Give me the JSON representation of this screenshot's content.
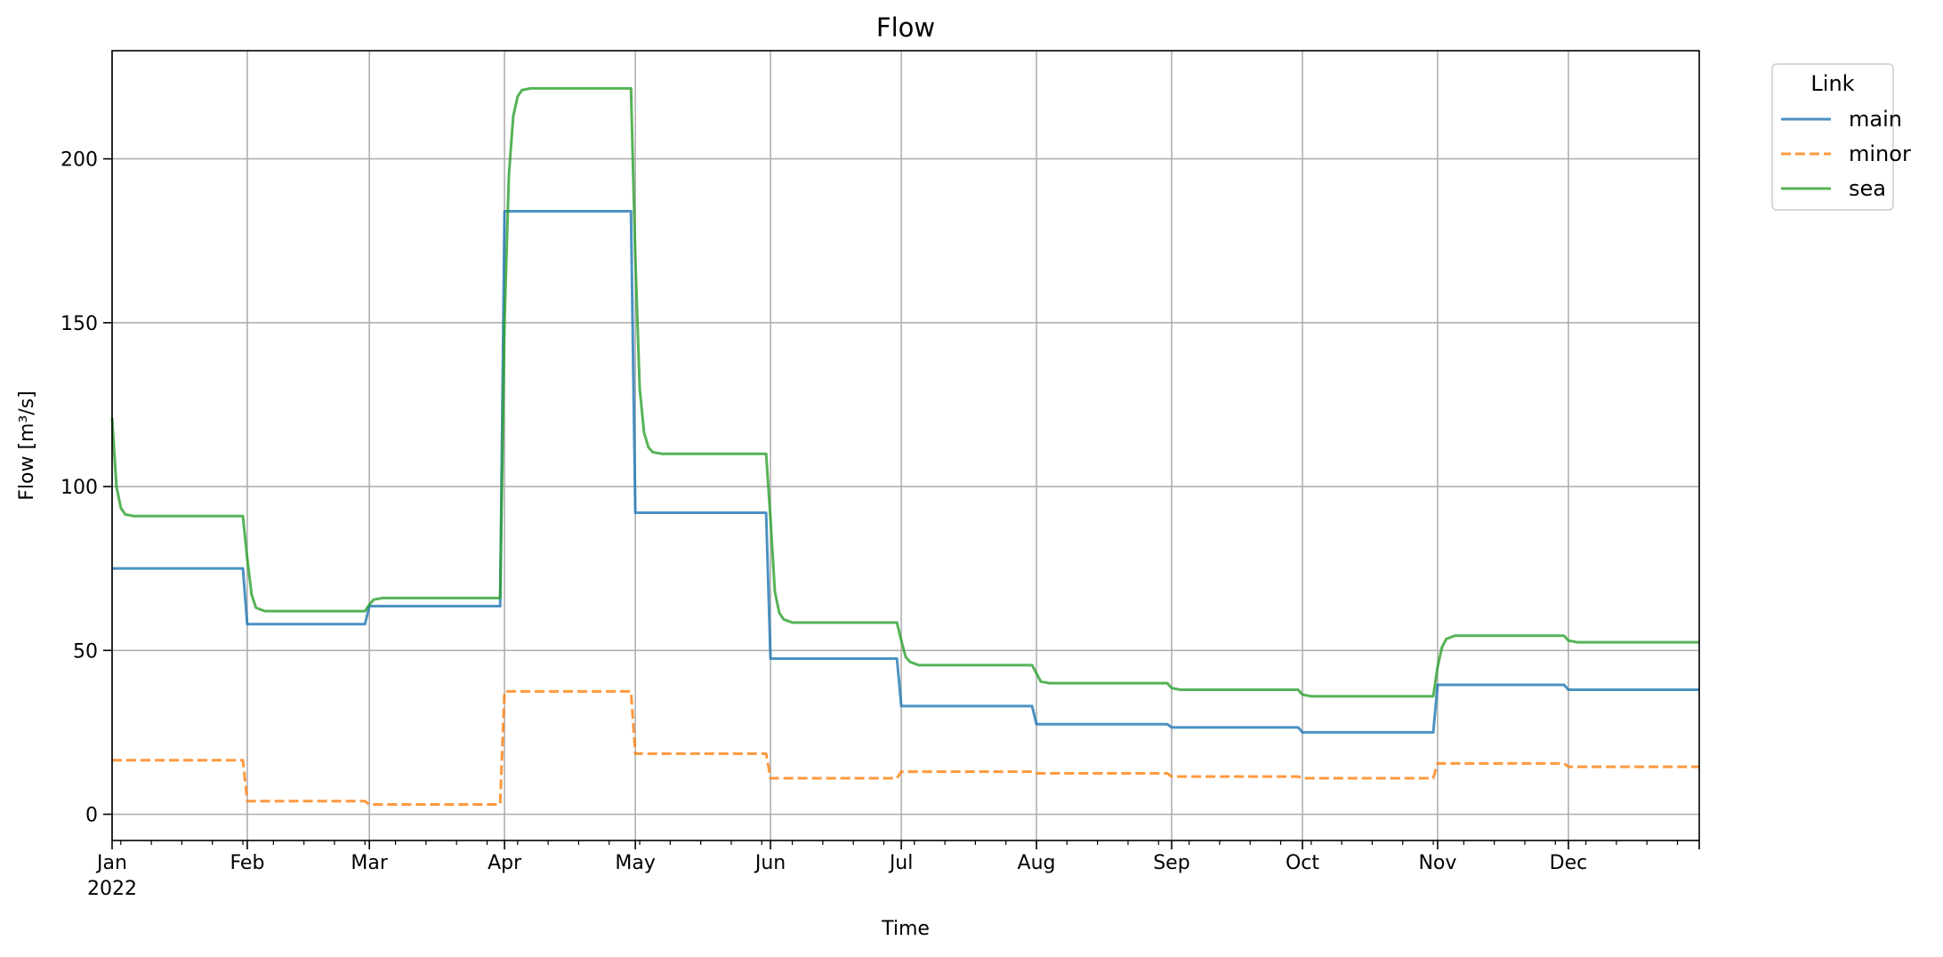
{
  "chart_data": {
    "type": "line",
    "title": "Flow",
    "xlabel": "Time",
    "ylabel": "Flow [m³/s]",
    "year_label": "2022",
    "xlim": [
      "2022-01-01",
      "2022-12-31"
    ],
    "ylim": [
      -8,
      233
    ],
    "yticks": [
      0,
      50,
      100,
      150,
      200
    ],
    "month_ticks": [
      {
        "date": "2022-01-01",
        "label": "Jan"
      },
      {
        "date": "2022-02-01",
        "label": "Feb"
      },
      {
        "date": "2022-03-01",
        "label": "Mar"
      },
      {
        "date": "2022-04-01",
        "label": "Apr"
      },
      {
        "date": "2022-05-01",
        "label": "May"
      },
      {
        "date": "2022-06-01",
        "label": "Jun"
      },
      {
        "date": "2022-07-01",
        "label": "Jul"
      },
      {
        "date": "2022-08-01",
        "label": "Aug"
      },
      {
        "date": "2022-09-01",
        "label": "Sep"
      },
      {
        "date": "2022-10-01",
        "label": "Oct"
      },
      {
        "date": "2022-11-01",
        "label": "Nov"
      },
      {
        "date": "2022-12-01",
        "label": "Dec"
      }
    ],
    "grid": true,
    "legend": {
      "title": "Link",
      "placement": "outside-top-right"
    },
    "series": [
      {
        "name": "main",
        "color": "#1f77b4",
        "dash": "solid",
        "points": [
          [
            "2022-01-01",
            75
          ],
          [
            "2022-01-31",
            75
          ],
          [
            "2022-02-01",
            58
          ],
          [
            "2022-02-28",
            58
          ],
          [
            "2022-03-01",
            63.5
          ],
          [
            "2022-03-31",
            63.5
          ],
          [
            "2022-04-01",
            184
          ],
          [
            "2022-04-30",
            184
          ],
          [
            "2022-05-01",
            92
          ],
          [
            "2022-05-31",
            92
          ],
          [
            "2022-06-01",
            47.5
          ],
          [
            "2022-06-30",
            47.5
          ],
          [
            "2022-07-01",
            33
          ],
          [
            "2022-07-31",
            33
          ],
          [
            "2022-08-01",
            27.5
          ],
          [
            "2022-08-31",
            27.5
          ],
          [
            "2022-09-01",
            26.5
          ],
          [
            "2022-09-30",
            26.5
          ],
          [
            "2022-10-01",
            25
          ],
          [
            "2022-10-31",
            25
          ],
          [
            "2022-11-01",
            39.5
          ],
          [
            "2022-11-30",
            39.5
          ],
          [
            "2022-12-01",
            38
          ],
          [
            "2022-12-31",
            38
          ]
        ]
      },
      {
        "name": "minor",
        "color": "#ff7f0e",
        "dash": "dashed",
        "points": [
          [
            "2022-01-01",
            16.5
          ],
          [
            "2022-01-31",
            16.5
          ],
          [
            "2022-02-01",
            4
          ],
          [
            "2022-02-28",
            4
          ],
          [
            "2022-03-01",
            3
          ],
          [
            "2022-03-31",
            3
          ],
          [
            "2022-04-01",
            37.5
          ],
          [
            "2022-04-30",
            37.5
          ],
          [
            "2022-05-01",
            18.5
          ],
          [
            "2022-05-31",
            18.5
          ],
          [
            "2022-06-01",
            11
          ],
          [
            "2022-06-30",
            11
          ],
          [
            "2022-07-01",
            13
          ],
          [
            "2022-07-31",
            13
          ],
          [
            "2022-08-01",
            12.5
          ],
          [
            "2022-08-31",
            12.5
          ],
          [
            "2022-09-01",
            11.5
          ],
          [
            "2022-09-30",
            11.5
          ],
          [
            "2022-10-01",
            11
          ],
          [
            "2022-10-31",
            11
          ],
          [
            "2022-11-01",
            15.5
          ],
          [
            "2022-11-30",
            15.5
          ],
          [
            "2022-12-01",
            14.5
          ],
          [
            "2022-12-31",
            14.5
          ]
        ]
      },
      {
        "name": "sea",
        "color": "#2ca02c",
        "dash": "solid",
        "points": [
          [
            "2022-01-01",
            121
          ],
          [
            "2022-01-02",
            100
          ],
          [
            "2022-01-03",
            93.5
          ],
          [
            "2022-01-04",
            91.5
          ],
          [
            "2022-01-06",
            91
          ],
          [
            "2022-01-31",
            91
          ],
          [
            "2022-02-01",
            78
          ],
          [
            "2022-02-02",
            67
          ],
          [
            "2022-02-03",
            63
          ],
          [
            "2022-02-05",
            62
          ],
          [
            "2022-02-28",
            62
          ],
          [
            "2022-03-01",
            64
          ],
          [
            "2022-03-02",
            65.5
          ],
          [
            "2022-03-04",
            66
          ],
          [
            "2022-03-31",
            66
          ],
          [
            "2022-04-01",
            150
          ],
          [
            "2022-04-02",
            195
          ],
          [
            "2022-04-03",
            213
          ],
          [
            "2022-04-04",
            219
          ],
          [
            "2022-04-05",
            221
          ],
          [
            "2022-04-07",
            221.5
          ],
          [
            "2022-04-30",
            221.5
          ],
          [
            "2022-05-01",
            170
          ],
          [
            "2022-05-02",
            130
          ],
          [
            "2022-05-03",
            116.5
          ],
          [
            "2022-05-04",
            112
          ],
          [
            "2022-05-05",
            110.5
          ],
          [
            "2022-05-07",
            110
          ],
          [
            "2022-05-31",
            110
          ],
          [
            "2022-06-01",
            90
          ],
          [
            "2022-06-02",
            68
          ],
          [
            "2022-06-03",
            61.5
          ],
          [
            "2022-06-04",
            59.5
          ],
          [
            "2022-06-06",
            58.5
          ],
          [
            "2022-06-30",
            58.5
          ],
          [
            "2022-07-01",
            53
          ],
          [
            "2022-07-02",
            48
          ],
          [
            "2022-07-03",
            46.5
          ],
          [
            "2022-07-05",
            45.5
          ],
          [
            "2022-07-31",
            45.5
          ],
          [
            "2022-08-01",
            43
          ],
          [
            "2022-08-02",
            40.5
          ],
          [
            "2022-08-04",
            40
          ],
          [
            "2022-08-31",
            40
          ],
          [
            "2022-09-01",
            38.5
          ],
          [
            "2022-09-03",
            38
          ],
          [
            "2022-09-30",
            38
          ],
          [
            "2022-10-01",
            36.5
          ],
          [
            "2022-10-03",
            36
          ],
          [
            "2022-10-31",
            36
          ],
          [
            "2022-11-01",
            45
          ],
          [
            "2022-11-02",
            51
          ],
          [
            "2022-11-03",
            53.5
          ],
          [
            "2022-11-05",
            54.5
          ],
          [
            "2022-11-30",
            54.5
          ],
          [
            "2022-12-01",
            53
          ],
          [
            "2022-12-03",
            52.5
          ],
          [
            "2022-12-31",
            52.5
          ]
        ]
      }
    ]
  }
}
